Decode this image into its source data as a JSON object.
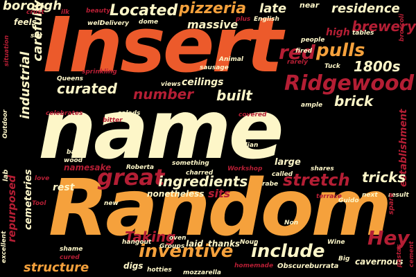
{
  "palette": {
    "background": "#000000",
    "orange_red": "#ec5a2b",
    "orange": "#f5a13c",
    "cream": "#fdf6c8",
    "crimson": "#b41e34",
    "light_orange": "#f6b15c",
    "dark_red": "#7a1321"
  },
  "words": [
    {
      "text": "Insert",
      "color": "orange_red",
      "emphasis": "largest"
    },
    {
      "text": "name",
      "color": "cream",
      "emphasis": "largest"
    },
    {
      "text": "Random",
      "color": "orange",
      "emphasis": "largest"
    },
    {
      "text": "Located",
      "color": "cream",
      "emphasis": "large"
    },
    {
      "text": "pizzeria",
      "color": "orange",
      "emphasis": "large"
    },
    {
      "text": "late",
      "color": "cream",
      "emphasis": "medium"
    },
    {
      "text": "near",
      "color": "cream",
      "emphasis": "small"
    },
    {
      "text": "residence",
      "color": "cream",
      "emphasis": "medium"
    },
    {
      "text": "borough",
      "color": "cream",
      "emphasis": "medium"
    },
    {
      "text": "brewery",
      "color": "crimson",
      "emphasis": "medium"
    },
    {
      "text": "massive",
      "color": "cream",
      "emphasis": "medium"
    },
    {
      "text": "feels",
      "color": "cream",
      "emphasis": "small"
    },
    {
      "text": "high",
      "color": "crimson",
      "emphasis": "small"
    },
    {
      "text": "red",
      "color": "crimson",
      "emphasis": "large"
    },
    {
      "text": "pulls",
      "color": "orange",
      "emphasis": "large"
    },
    {
      "text": "1800s",
      "color": "cream",
      "emphasis": "medium"
    },
    {
      "text": "Ridgewood",
      "color": "crimson",
      "emphasis": "large"
    },
    {
      "text": "curated",
      "color": "cream",
      "emphasis": "medium"
    },
    {
      "text": "number",
      "color": "crimson",
      "emphasis": "medium"
    },
    {
      "text": "ceilings",
      "color": "cream",
      "emphasis": "small"
    },
    {
      "text": "built",
      "color": "cream",
      "emphasis": "medium"
    },
    {
      "text": "brick",
      "color": "cream",
      "emphasis": "medium"
    },
    {
      "text": "carefully",
      "color": "cream",
      "emphasis": "medium"
    },
    {
      "text": "industrial",
      "color": "cream",
      "emphasis": "medium"
    },
    {
      "text": "establishment",
      "color": "crimson",
      "emphasis": "small"
    },
    {
      "text": "great",
      "color": "crimson",
      "emphasis": "large"
    },
    {
      "text": "ingredients",
      "color": "cream",
      "emphasis": "medium"
    },
    {
      "text": "stretch",
      "color": "crimson",
      "emphasis": "large"
    },
    {
      "text": "tricks",
      "color": "cream",
      "emphasis": "medium"
    },
    {
      "text": "namesake",
      "color": "crimson",
      "emphasis": "small"
    },
    {
      "text": "large",
      "color": "cream",
      "emphasis": "small"
    },
    {
      "text": "rest",
      "color": "cream",
      "emphasis": "small"
    },
    {
      "text": "nonetheless",
      "color": "cream",
      "emphasis": "small"
    },
    {
      "text": "sits",
      "color": "crimson",
      "emphasis": "small"
    },
    {
      "text": "repurposed",
      "color": "crimson",
      "emphasis": "medium"
    },
    {
      "text": "cemeteries",
      "color": "cream",
      "emphasis": "small"
    },
    {
      "text": "Taking",
      "color": "crimson",
      "emphasis": "medium"
    },
    {
      "text": "inventive",
      "color": "orange",
      "emphasis": "large"
    },
    {
      "text": "include",
      "color": "cream",
      "emphasis": "large"
    },
    {
      "text": "Hey",
      "color": "crimson",
      "emphasis": "large"
    },
    {
      "text": "structure",
      "color": "orange",
      "emphasis": "medium"
    },
    {
      "text": "laid",
      "color": "cream",
      "emphasis": "small"
    },
    {
      "text": "thanks",
      "color": "cream",
      "emphasis": "small"
    },
    {
      "text": "digs",
      "color": "cream",
      "emphasis": "small"
    },
    {
      "text": "cavernous",
      "color": "cream",
      "emphasis": "small"
    },
    {
      "text": "Roberta",
      "color": "cream",
      "emphasis": "tiny"
    },
    {
      "text": "Workshop",
      "color": "crimson",
      "emphasis": "tiny"
    },
    {
      "text": "something",
      "color": "cream",
      "emphasis": "tiny"
    },
    {
      "text": "charred",
      "color": "cream",
      "emphasis": "tiny"
    },
    {
      "text": "Italian",
      "color": "cream",
      "emphasis": "tiny"
    },
    {
      "text": "don",
      "color": "cream",
      "emphasis": "tiny"
    },
    {
      "text": "called",
      "color": "cream",
      "emphasis": "tiny"
    },
    {
      "text": "shares",
      "color": "cream",
      "emphasis": "tiny"
    },
    {
      "text": "rabe",
      "color": "cream",
      "emphasis": "tiny"
    },
    {
      "text": "terrace",
      "color": "crimson",
      "emphasis": "tiny"
    },
    {
      "text": "Guido",
      "color": "cream",
      "emphasis": "tiny"
    },
    {
      "text": "next",
      "color": "cream",
      "emphasis": "tiny"
    },
    {
      "text": "result",
      "color": "cream",
      "emphasis": "tiny"
    },
    {
      "text": "spare",
      "color": "crimson",
      "emphasis": "tiny"
    },
    {
      "text": "Non",
      "color": "cream",
      "emphasis": "tiny"
    },
    {
      "text": "Noun",
      "color": "cream",
      "emphasis": "tiny"
    },
    {
      "text": "Wine",
      "color": "cream",
      "emphasis": "tiny"
    },
    {
      "text": "Big",
      "color": "cream",
      "emphasis": "tiny"
    },
    {
      "text": "burrata",
      "color": "cream",
      "emphasis": "tiny"
    },
    {
      "text": "Obscure",
      "color": "cream",
      "emphasis": "tiny"
    },
    {
      "text": "homemade",
      "color": "crimson",
      "emphasis": "tiny"
    },
    {
      "text": "mozzarella",
      "color": "cream",
      "emphasis": "tiny"
    },
    {
      "text": "hotties",
      "color": "cream",
      "emphasis": "tiny"
    },
    {
      "text": "Groups",
      "color": "cream",
      "emphasis": "tiny"
    },
    {
      "text": "oven",
      "color": "cream",
      "emphasis": "tiny"
    },
    {
      "text": "hangout",
      "color": "cream",
      "emphasis": "tiny"
    },
    {
      "text": "shame",
      "color": "cream",
      "emphasis": "tiny"
    },
    {
      "text": "cured",
      "color": "crimson",
      "emphasis": "tiny"
    },
    {
      "text": "excellent",
      "color": "cream",
      "emphasis": "tiny"
    },
    {
      "text": "lab",
      "color": "cream",
      "emphasis": "tiny"
    },
    {
      "text": "Tool",
      "color": "crimson",
      "emphasis": "tiny"
    },
    {
      "text": "love",
      "color": "crimson",
      "emphasis": "tiny"
    },
    {
      "text": "new",
      "color": "cream",
      "emphasis": "tiny"
    },
    {
      "text": "wood",
      "color": "cream",
      "emphasis": "tiny"
    },
    {
      "text": "band",
      "color": "cream",
      "emphasis": "tiny"
    },
    {
      "text": "bitter",
      "color": "crimson",
      "emphasis": "tiny"
    },
    {
      "text": "salads",
      "color": "cream",
      "emphasis": "tiny"
    },
    {
      "text": "celebrates",
      "color": "crimson",
      "emphasis": "tiny"
    },
    {
      "text": "Outdoor",
      "color": "cream",
      "emphasis": "tiny"
    },
    {
      "text": "Queens",
      "color": "cream",
      "emphasis": "tiny"
    },
    {
      "text": "sprinkling",
      "color": "crimson",
      "emphasis": "tiny"
    },
    {
      "text": "views",
      "color": "cream",
      "emphasis": "tiny"
    },
    {
      "text": "sausage",
      "color": "cream",
      "emphasis": "tiny"
    },
    {
      "text": "Animal",
      "color": "cream",
      "emphasis": "tiny"
    },
    {
      "text": "fired",
      "color": "cream",
      "emphasis": "tiny"
    },
    {
      "text": "rarely",
      "color": "crimson",
      "emphasis": "tiny"
    },
    {
      "text": "Tuck",
      "color": "cream",
      "emphasis": "tiny"
    },
    {
      "text": "people",
      "color": "cream",
      "emphasis": "tiny"
    },
    {
      "text": "tables",
      "color": "cream",
      "emphasis": "tiny"
    },
    {
      "text": "broccoli",
      "color": "crimson",
      "emphasis": "tiny"
    },
    {
      "text": "English",
      "color": "cream",
      "emphasis": "tiny"
    },
    {
      "text": "Delivery",
      "color": "cream",
      "emphasis": "tiny"
    },
    {
      "text": "well",
      "color": "cream",
      "emphasis": "tiny"
    },
    {
      "text": "dome",
      "color": "cream",
      "emphasis": "tiny"
    },
    {
      "text": "plus",
      "color": "crimson",
      "emphasis": "tiny"
    },
    {
      "text": "crust",
      "color": "crimson",
      "emphasis": "tiny"
    },
    {
      "text": "say",
      "color": "cream",
      "emphasis": "tiny"
    },
    {
      "text": "ilk",
      "color": "crimson",
      "emphasis": "tiny"
    },
    {
      "text": "beauty",
      "color": "crimson",
      "emphasis": "tiny"
    },
    {
      "text": "situation",
      "color": "crimson",
      "emphasis": "tiny"
    },
    {
      "text": "covered",
      "color": "crimson",
      "emphasis": "tiny"
    },
    {
      "text": "ample",
      "color": "cream",
      "emphasis": "tiny"
    },
    {
      "text": "pastas",
      "color": "crimson",
      "emphasis": "tiny"
    },
    {
      "text": "cement",
      "color": "crimson",
      "emphasis": "tiny"
    }
  ]
}
